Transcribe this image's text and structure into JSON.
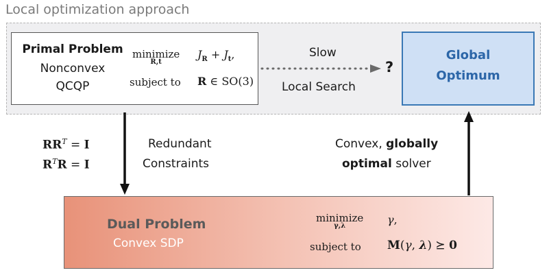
{
  "section_label": "Local optimization approach",
  "primal": {
    "title": "Primal Problem",
    "subtitle_line1": "Nonconvex",
    "subtitle_line2": "QCQP",
    "minimize_kw": "minimize",
    "minimize_vars": "R,t",
    "objective": "J_R + J_t,",
    "subject_to_kw": "subject to",
    "constraint": "R ∈ SO(3)"
  },
  "link_top": {
    "above": "Slow",
    "below": "Local Search",
    "result_symbol": "?"
  },
  "global": {
    "line1": "Global",
    "line2": "Optimum"
  },
  "left_constraints": {
    "eq1": "RR^T = I",
    "eq2": "R^T R = I",
    "label_line1": "Redundant",
    "label_line2": "Constraints"
  },
  "right_label": {
    "line1_regular": "Convex,",
    "line1_bold": "globally",
    "line2_bold": "optimal",
    "line2_regular": "solver"
  },
  "dual": {
    "title": "Dual Problem",
    "subtitle": "Convex SDP",
    "minimize_kw": "minimize",
    "minimize_vars": "γ,λ",
    "objective": "γ,",
    "subject_to_kw": "subject to",
    "constraint": "M(γ, λ) ⪰ 0"
  },
  "colors": {
    "region_fill": "#efeff1",
    "global_fill": "#cfe0f5",
    "global_border": "#3a78b5",
    "global_text": "#2c66a8",
    "dual_gradient_start": "#e89279",
    "dual_gradient_end": "#fde9e6"
  }
}
